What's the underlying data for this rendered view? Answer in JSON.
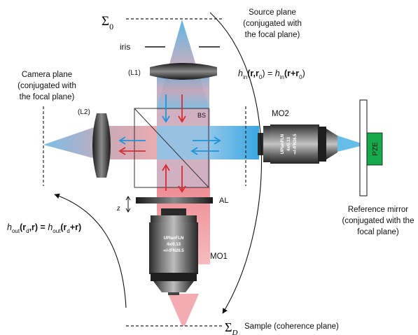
{
  "planes": {
    "source": {
      "symbol": "Σ",
      "subscript": "0",
      "line1": "Source plane",
      "line2": "(conjugated with",
      "line3": "the focal plane)"
    },
    "sample": {
      "symbol": "Σ",
      "subscript": "D",
      "label": "Sample (coherence plane)"
    },
    "camera": {
      "line1": "Camera plane",
      "line2": "(conjugated with",
      "line3": "the focal plane)"
    }
  },
  "components": {
    "iris": "iris",
    "l1": "(L1)",
    "l2": "(L2)",
    "bs": "BS",
    "mo2": "MO2",
    "mo1": "MO1",
    "al": "AL",
    "z": "z",
    "pze": "PZE"
  },
  "mirror": {
    "line1": "Reference mirror",
    "line2": "(conjugated with the",
    "line3": "focal plane)"
  },
  "objective_text": {
    "line1": "UPlanFLN",
    "line2": "4x/0.13",
    "line3": "∞/-/FN26.5"
  },
  "equations": {
    "h_in": {
      "h": "h",
      "sub": "in",
      "args": "(r,r",
      "sub0": "0",
      "eq": ") = ",
      "h2": "h",
      "sub2": "in",
      "args2": "(r+r",
      "sub3": "0",
      "end": ")"
    },
    "h_out": {
      "h": "h",
      "sub": "out",
      "args": "(r",
      "subd": "d",
      "mid": ",r) = ",
      "h2": "h",
      "sub2": "out",
      "args2": "(r",
      "subd2": "d",
      "end": "+r)"
    }
  },
  "colors": {
    "blue_beam": "#3fa9e0",
    "red_beam": "#e6474f",
    "arrow_blue": "#1d95d8",
    "arrow_red": "#d92b33",
    "pze_green": "#15a94b"
  }
}
